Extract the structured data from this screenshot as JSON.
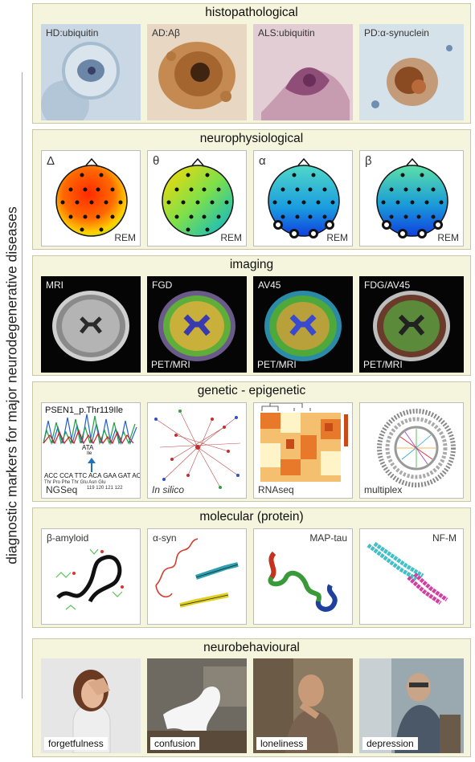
{
  "side_label": "diagnostic markers for major neurodegenerative diseases",
  "panels": {
    "histo": {
      "title": "histopathological",
      "labels": [
        "HD:ubiquitin",
        "AD:Aβ",
        "ALS:ubiquitin",
        "PD:α-synuclein"
      ]
    },
    "neuro": {
      "title": "neurophysiological",
      "greek": [
        "Δ",
        "θ",
        "α",
        "β"
      ],
      "state": "REM"
    },
    "imaging": {
      "title": "imaging",
      "labels": [
        "MRI",
        "FGD",
        "AV45",
        "FDG/AV45"
      ],
      "modality": "PET/MRI"
    },
    "genetic": {
      "title": "genetic - epigenetic",
      "labels": [
        "NGSeq",
        "In silico",
        "RNAseq",
        "multiplex"
      ],
      "mutation": "PSEN1_p.Thr119Ile",
      "codon_mut": "ATA",
      "aa_mut": "Ile",
      "dna": "ACC CCA TTC ACA GAA GAT ACC",
      "aa": "Thr Pro Phe Thr Glu Asn Glu",
      "pos": "119 120 121 122"
    },
    "molecular": {
      "title": "molecular (protein)",
      "labels": [
        "β-amyloid",
        "α-syn",
        "MAP-tau",
        "NF-M"
      ]
    },
    "behav": {
      "title": "neurobehavioural",
      "labels": [
        "forgetfulness",
        "confusion",
        "loneliness",
        "depression"
      ]
    }
  }
}
